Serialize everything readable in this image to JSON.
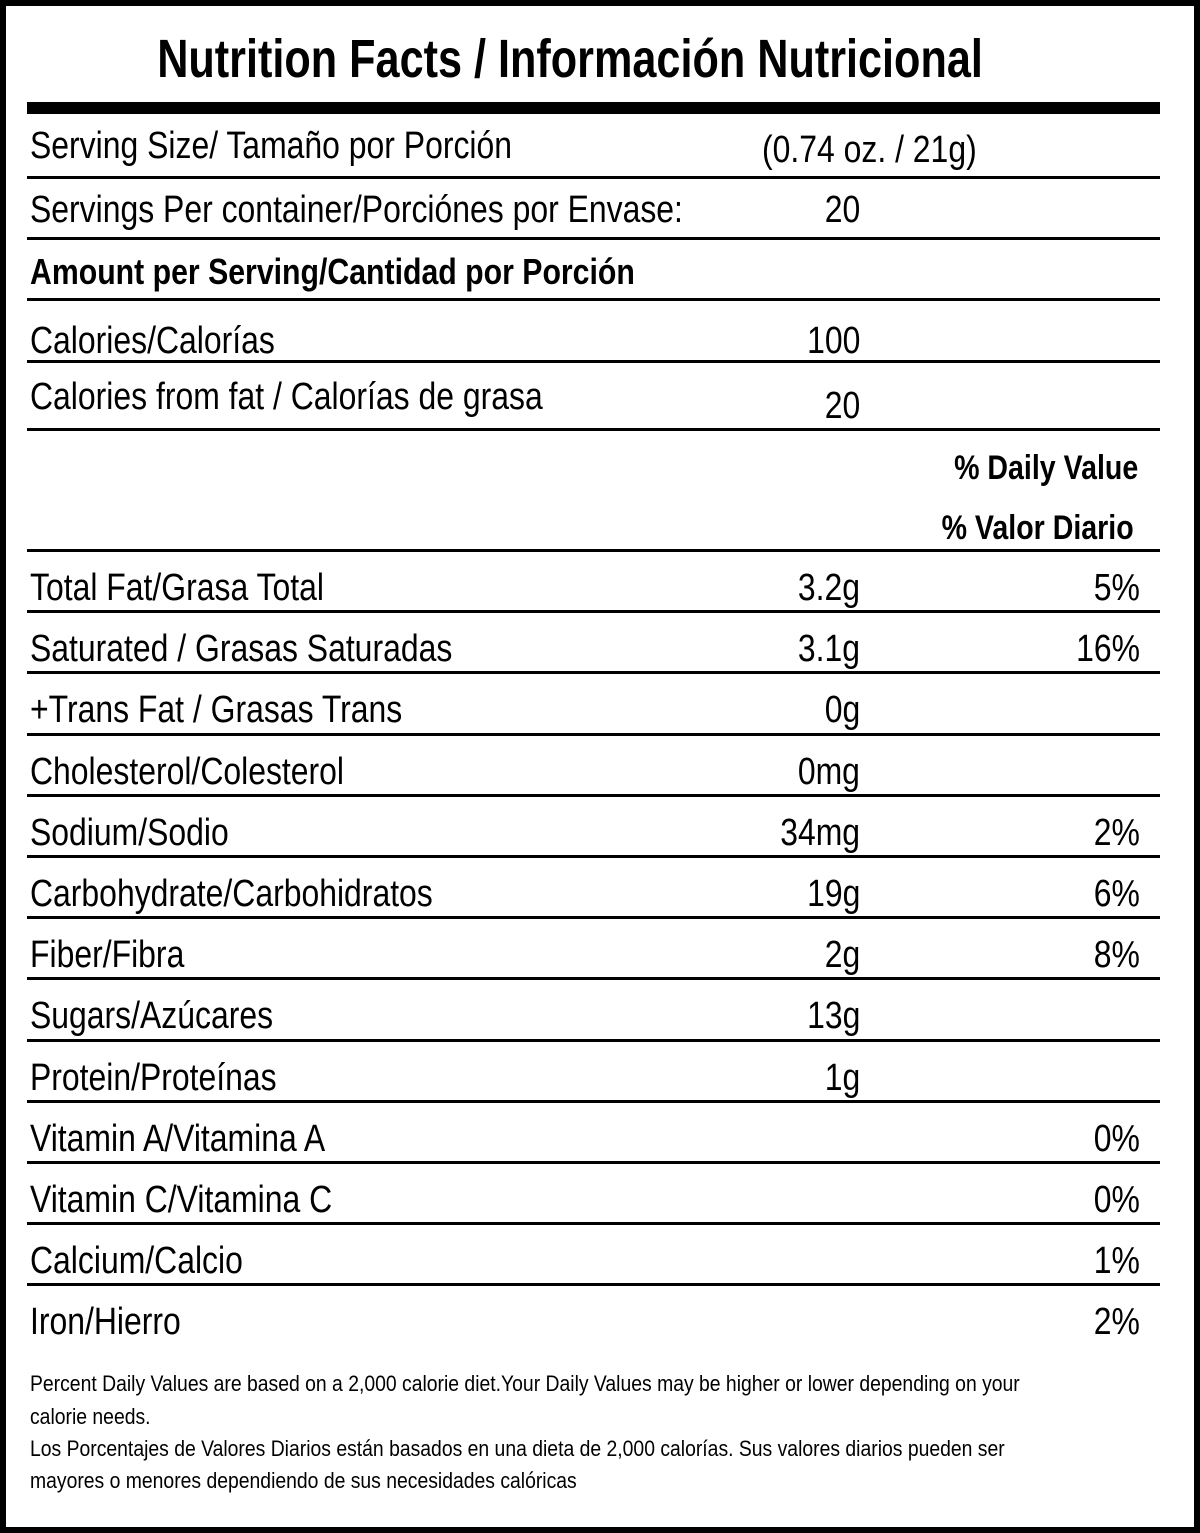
{
  "title": "Nutrition Facts / Información Nutricional",
  "serving_size": {
    "label": "Serving Size/ Tamaño por Porción",
    "value": "(0.74 oz. / 21g)"
  },
  "servings_per_container": {
    "label": "Servings Per container/Porciónes por Envase:",
    "value": "20"
  },
  "amount_per_serving": "Amount per Serving/Cantidad por Porción",
  "calories": {
    "label": "Calories/Calorías",
    "value": "100"
  },
  "calories_from_fat": {
    "label": "Calories from fat / Calorías de grasa",
    "value": "20"
  },
  "daily_value_header": {
    "en": "% Daily Value",
    "es": "% Valor Diario"
  },
  "nutrients": [
    {
      "label": "Total Fat/Grasa Total",
      "amount": "3.2g",
      "dv": "5%"
    },
    {
      "label": "Saturated / Grasas Saturadas",
      "amount": "3.1g",
      "dv": "16%"
    },
    {
      "label": "+Trans Fat / Grasas Trans",
      "amount": "0g",
      "dv": ""
    },
    {
      "label": "Cholesterol/Colesterol",
      "amount": "0mg",
      "dv": ""
    },
    {
      "label": "Sodium/Sodio",
      "amount": "34mg",
      "dv": "2%"
    },
    {
      "label": "Carbohydrate/Carbohidratos",
      "amount": "19g",
      "dv": "6%"
    },
    {
      "label": "Fiber/Fibra",
      "amount": "2g",
      "dv": "8%"
    },
    {
      "label": "Sugars/Azúcares",
      "amount": "13g",
      "dv": ""
    },
    {
      "label": "Protein/Proteínas",
      "amount": "1g",
      "dv": ""
    },
    {
      "label": "Vitamin A/Vitamina A",
      "amount": "",
      "dv": "0%"
    },
    {
      "label": "Vitamin C/Vitamina C",
      "amount": "",
      "dv": "0%"
    },
    {
      "label": "Calcium/Calcio",
      "amount": "",
      "dv": "1%"
    },
    {
      "label": "Iron/Hierro",
      "amount": "",
      "dv": "2%"
    }
  ],
  "footnote": [
    "Percent Daily Values are based on a 2,000 calorie diet.Your Daily Values may be higher or lower depending on your",
    "calorie needs.",
    "Los Porcentajes de Valores Diarios están basados en una dieta de 2,000 calorías. Sus valores diarios pueden ser",
    "mayores o menores dependiendo de sus necesidades calóricas"
  ]
}
